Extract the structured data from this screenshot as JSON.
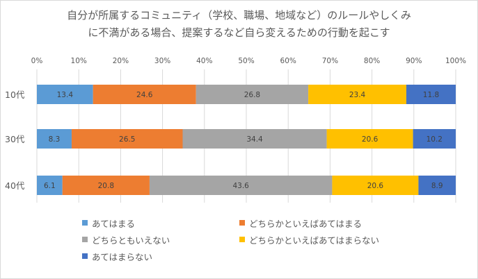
{
  "chart_data": {
    "type": "bar",
    "orientation": "horizontal",
    "stacked": "percent",
    "title_lines": [
      "自分が所属するコミュニティ（学校、職場、地域など）のルールやしくみ",
      "に不満がある場合、提案するなど自ら変えるための行動を起こす"
    ],
    "categories": [
      "10代",
      "30代",
      "40代"
    ],
    "x_ticks": [
      "0%",
      "10%",
      "20%",
      "30%",
      "40%",
      "50%",
      "60%",
      "70%",
      "80%",
      "90%",
      "100%"
    ],
    "xlim": [
      0,
      100
    ],
    "grid": true,
    "legend_position": "bottom",
    "series": [
      {
        "name": "あてはまる",
        "color": "#5b9bd5",
        "values": [
          13.4,
          8.3,
          6.1
        ],
        "labels": [
          "13.4",
          "8.3",
          "6.1"
        ]
      },
      {
        "name": "どちらかといえばあてはまる",
        "color": "#ed7d31",
        "values": [
          24.6,
          26.5,
          20.8
        ],
        "labels": [
          "24.6",
          "26.5",
          "20.8"
        ]
      },
      {
        "name": "どちらともいえない",
        "color": "#a5a5a5",
        "values": [
          26.8,
          34.4,
          43.6
        ],
        "labels": [
          "26.8",
          "34.4",
          "43.6"
        ]
      },
      {
        "name": "どちらかといえばあてはまらない",
        "color": "#ffc000",
        "values": [
          23.4,
          20.6,
          20.6
        ],
        "labels": [
          "23.4",
          "20.6",
          "20.6"
        ]
      },
      {
        "name": "あてはまらない",
        "color": "#4472c4",
        "values": [
          11.8,
          10.2,
          8.9
        ],
        "labels": [
          "11.8",
          "10.2",
          "8.9"
        ]
      }
    ]
  }
}
